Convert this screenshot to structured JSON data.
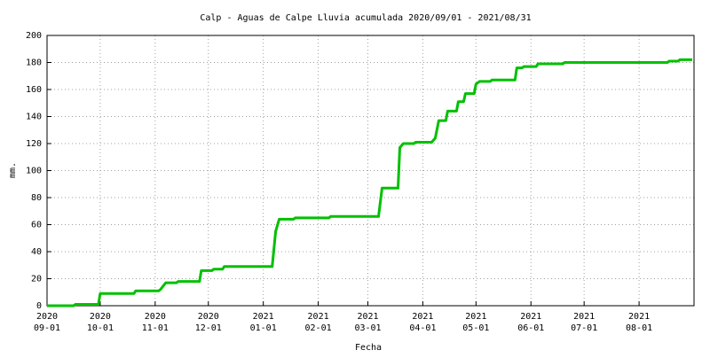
{
  "chart_data": {
    "type": "line",
    "title": "Calp - Aguas de Calpe Lluvia acumulada 2020/09/01 - 2021/08/31",
    "x_label": "Fecha",
    "y_label": "mm.",
    "x": [
      "2020-09-01",
      "2020-09-16",
      "2020-09-17",
      "2020-09-30",
      "2020-10-01",
      "2020-10-20",
      "2020-10-21",
      "2020-11-03",
      "2020-11-04",
      "2020-11-07",
      "2020-11-13",
      "2020-11-14",
      "2020-11-26",
      "2020-11-27",
      "2020-12-03",
      "2020-12-04",
      "2020-12-09",
      "2020-12-10",
      "2021-01-06",
      "2021-01-08",
      "2021-01-10",
      "2021-01-18",
      "2021-01-19",
      "2021-02-07",
      "2021-02-08",
      "2021-03-07",
      "2021-03-09",
      "2021-03-18",
      "2021-03-19",
      "2021-03-21",
      "2021-03-27",
      "2021-03-28",
      "2021-04-06",
      "2021-04-08",
      "2021-04-10",
      "2021-04-14",
      "2021-04-15",
      "2021-04-20",
      "2021-04-21",
      "2021-04-24",
      "2021-04-25",
      "2021-04-30",
      "2021-05-01",
      "2021-05-03",
      "2021-05-09",
      "2021-05-10",
      "2021-05-23",
      "2021-05-24",
      "2021-05-27",
      "2021-05-28",
      "2021-06-04",
      "2021-06-05",
      "2021-06-19",
      "2021-06-20",
      "2021-08-17",
      "2021-08-18",
      "2021-08-23",
      "2021-08-24",
      "2021-08-31"
    ],
    "series": [
      {
        "name": "Lluvia acumulada",
        "color": "#00c000",
        "values": [
          0,
          0,
          1,
          1,
          9,
          9,
          11,
          11,
          12,
          17,
          17,
          18,
          18,
          26,
          26,
          27,
          27,
          29,
          29,
          55,
          64,
          64,
          65,
          65,
          66,
          66,
          87,
          87,
          117,
          120,
          120,
          121,
          121,
          124,
          137,
          137,
          144,
          144,
          151,
          151,
          157,
          157,
          164,
          166,
          166,
          167,
          167,
          176,
          176,
          177,
          177,
          179,
          179,
          180,
          180,
          181,
          181,
          182,
          182
        ]
      }
    ],
    "xlim": [
      "2020-09-01",
      "2021-09-01"
    ],
    "xticks": [
      {
        "value": "2020-09-01",
        "label": [
          "2020",
          "09-01"
        ]
      },
      {
        "value": "2020-10-01",
        "label": [
          "2020",
          "10-01"
        ]
      },
      {
        "value": "2020-11-01",
        "label": [
          "2020",
          "11-01"
        ]
      },
      {
        "value": "2020-12-01",
        "label": [
          "2020",
          "12-01"
        ]
      },
      {
        "value": "2021-01-01",
        "label": [
          "2021",
          "01-01"
        ]
      },
      {
        "value": "2021-02-01",
        "label": [
          "2021",
          "02-01"
        ]
      },
      {
        "value": "2021-03-01",
        "label": [
          "2021",
          "03-01"
        ]
      },
      {
        "value": "2021-04-01",
        "label": [
          "2021",
          "04-01"
        ]
      },
      {
        "value": "2021-05-01",
        "label": [
          "2021",
          "05-01"
        ]
      },
      {
        "value": "2021-06-01",
        "label": [
          "2021",
          "06-01"
        ]
      },
      {
        "value": "2021-07-01",
        "label": [
          "2021",
          "07-01"
        ]
      },
      {
        "value": "2021-08-01",
        "label": [
          "2021",
          "08-01"
        ]
      }
    ],
    "ylim": [
      0,
      200
    ],
    "yticks": [
      0,
      20,
      40,
      60,
      80,
      100,
      120,
      140,
      160,
      180,
      200
    ],
    "grid": true
  }
}
